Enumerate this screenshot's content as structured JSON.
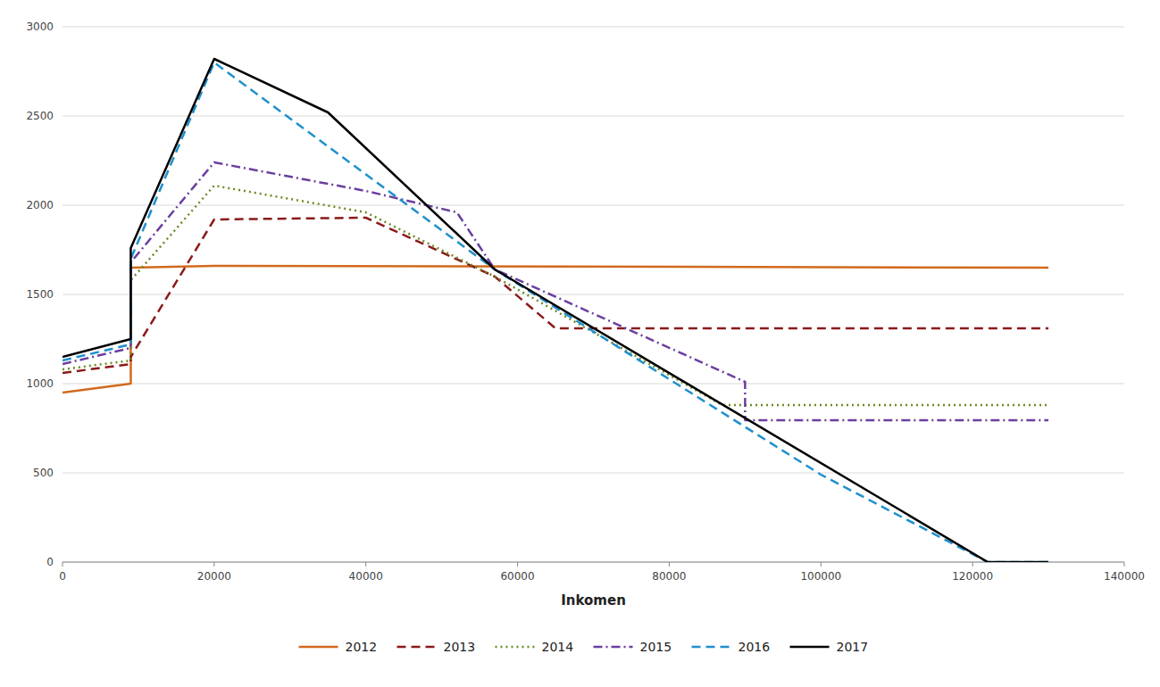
{
  "chart_data": {
    "type": "line",
    "xlabel": "Inkomen",
    "xlim": [
      0,
      140000
    ],
    "ylim": [
      0,
      3000
    ],
    "xticks": [
      0,
      20000,
      40000,
      60000,
      80000,
      100000,
      120000,
      140000
    ],
    "yticks": [
      0,
      500,
      1000,
      1500,
      2000,
      2500,
      3000
    ],
    "grid": "y",
    "legend": "bottom",
    "series": [
      {
        "name": "2012",
        "color": "#D2691E",
        "line_style": "solid",
        "x": [
          0,
          9000,
          9000,
          20000,
          20000,
          130000
        ],
        "values": [
          950,
          1000,
          1650,
          1660,
          1660,
          1650
        ]
      },
      {
        "name": "2013",
        "color": "#8B1A1A",
        "line_style": "dashed",
        "x": [
          0,
          9000,
          9000,
          20000,
          40000,
          57000,
          65000,
          130000
        ],
        "values": [
          1060,
          1110,
          1150,
          1920,
          1930,
          1600,
          1310,
          1310
        ]
      },
      {
        "name": "2014",
        "color": "#6B8B23",
        "line_style": "dotted",
        "x": [
          0,
          9000,
          9000,
          20000,
          40000,
          57000,
          87000,
          87000,
          130000
        ],
        "values": [
          1080,
          1130,
          1580,
          2110,
          1960,
          1600,
          880,
          880,
          880
        ]
      },
      {
        "name": "2015",
        "color": "#6B3FA0",
        "line_style": "dashdot",
        "x": [
          0,
          9000,
          9000,
          20000,
          40000,
          52000,
          57000,
          90000,
          90000,
          130000
        ],
        "values": [
          1110,
          1200,
          1680,
          2240,
          2080,
          1960,
          1640,
          1010,
          795,
          795
        ]
      },
      {
        "name": "2016",
        "color": "#1E90CD",
        "line_style": "dashed",
        "x": [
          0,
          9000,
          9000,
          20000,
          57000,
          100000,
          122000,
          130000
        ],
        "values": [
          1130,
          1220,
          1700,
          2800,
          1640,
          490,
          0,
          0
        ]
      },
      {
        "name": "2017",
        "color": "#000000",
        "line_style": "solid",
        "x": [
          0,
          9000,
          9000,
          20000,
          35000,
          57000,
          122000,
          130000
        ],
        "values": [
          1150,
          1250,
          1760,
          2820,
          2520,
          1640,
          0,
          0
        ]
      }
    ]
  }
}
